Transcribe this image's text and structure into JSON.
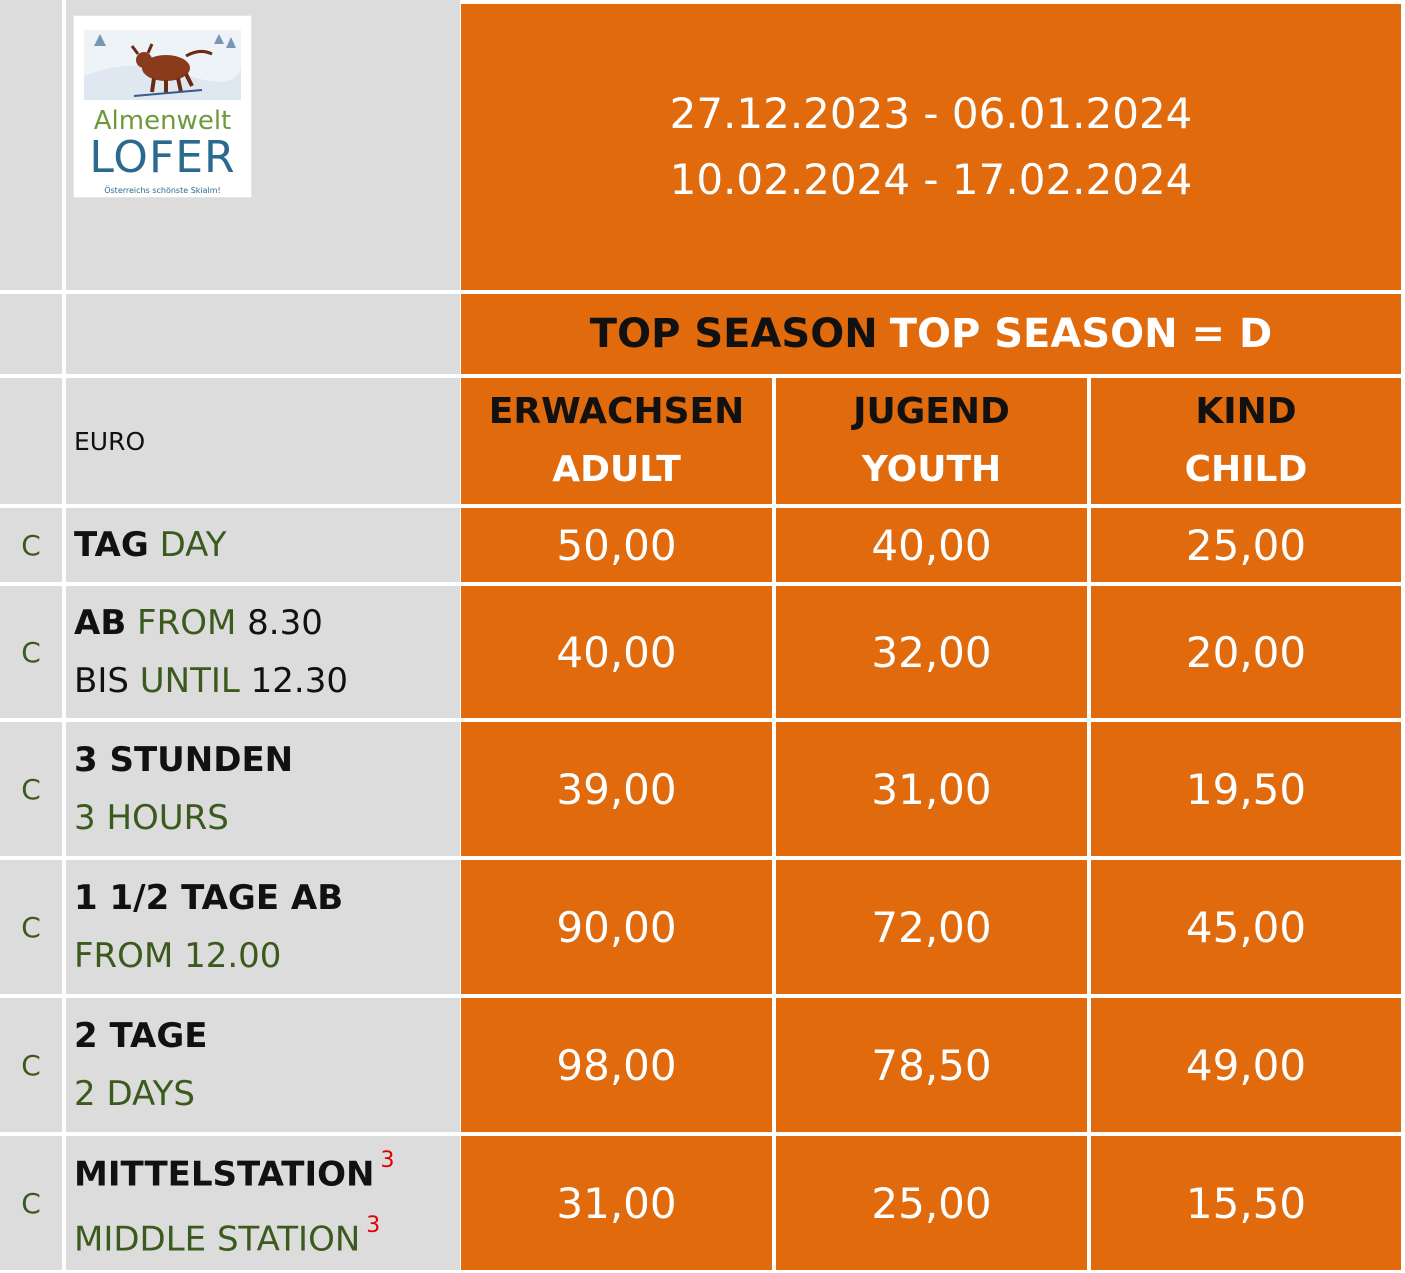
{
  "logo": {
    "word1": "Almenwelt",
    "word2": "LOFER",
    "tagline": "Österreichs schönste Skialm!",
    "icon": "ox-skier-icon"
  },
  "dates": [
    "27.12.2023 - 06.01.2024",
    "10.02.2024 - 17.02.2024"
  ],
  "season": {
    "de": "TOP SEASON",
    "en": "TOP SEASON = D"
  },
  "currency": "EURO",
  "columns": [
    {
      "de": "ERWACHSEN",
      "en": "ADULT"
    },
    {
      "de": "JUGEND",
      "en": "YOUTH"
    },
    {
      "de": "KIND",
      "en": "CHILD"
    }
  ],
  "rows": [
    {
      "code": "C",
      "line1_de": "TAG",
      "line1_en": "DAY",
      "prices": [
        "50,00",
        "40,00",
        "25,00"
      ]
    },
    {
      "code": "C",
      "line1_de": "AB",
      "line1_en": "FROM",
      "line1_num": "8.30",
      "line2_de": "BIS",
      "line2_en": "UNTIL",
      "line2_num": "12.30",
      "prices": [
        "40,00",
        "32,00",
        "20,00"
      ]
    },
    {
      "code": "C",
      "line1_de": "3 STUNDEN",
      "line2_en": "3 HOURS",
      "prices": [
        "39,00",
        "31,00",
        "19,50"
      ]
    },
    {
      "code": "C",
      "line1_de": "1 1/2 TAGE AB",
      "line2_en": "FROM 12.00",
      "prices": [
        "90,00",
        "72,00",
        "45,00"
      ]
    },
    {
      "code": "C",
      "line1_de": "2 TAGE",
      "line2_en": "2 DAYS",
      "prices": [
        "98,00",
        "78,50",
        "49,00"
      ]
    },
    {
      "code": "C",
      "line1_de": "MITTELSTATION",
      "line1_sup": "3",
      "line2_en": "MIDDLE STATION",
      "line2_sup": "3",
      "prices": [
        "31,00",
        "25,00",
        "15,50"
      ]
    }
  ],
  "colors": {
    "orange": "#e06a0c",
    "gray": "#dcdcdc",
    "english_text": "#3a5a1e",
    "footnote": "#e00000"
  }
}
